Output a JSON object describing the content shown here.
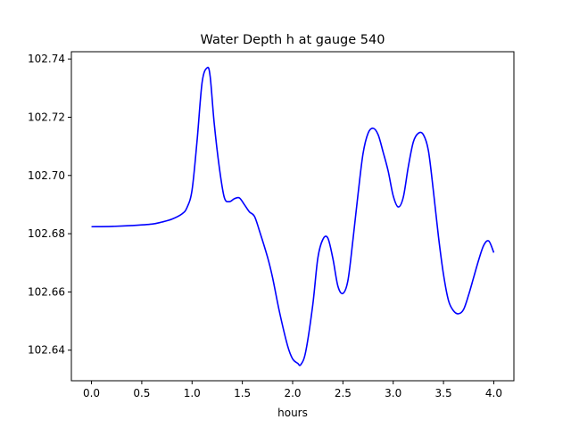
{
  "chart_data": {
    "type": "line",
    "title": "Water Depth h at gauge 540",
    "xlabel": "hours",
    "ylabel": "",
    "xlim": [
      -0.2,
      4.2
    ],
    "ylim": [
      102.6295,
      102.7425
    ],
    "xticks": [
      0.0,
      0.5,
      1.0,
      1.5,
      2.0,
      2.5,
      3.0,
      3.5,
      4.0
    ],
    "xtick_labels": [
      "0.0",
      "0.5",
      "1.0",
      "1.5",
      "2.0",
      "2.5",
      "3.0",
      "3.5",
      "4.0"
    ],
    "yticks": [
      102.64,
      102.66,
      102.68,
      102.7,
      102.72,
      102.74
    ],
    "ytick_labels": [
      "102.64",
      "102.66",
      "102.68",
      "102.70",
      "102.72",
      "102.74"
    ],
    "grid": false,
    "legend": "none",
    "series": [
      {
        "color": "#0000ff",
        "x": [
          0.0,
          0.2,
          0.4,
          0.6,
          0.7,
          0.8,
          0.9,
          0.95,
          1.0,
          1.05,
          1.1,
          1.15,
          1.18,
          1.22,
          1.27,
          1.32,
          1.37,
          1.42,
          1.47,
          1.52,
          1.57,
          1.62,
          1.67,
          1.75,
          1.8,
          1.87,
          1.95,
          2.0,
          2.05,
          2.08,
          2.13,
          2.2,
          2.25,
          2.3,
          2.35,
          2.4,
          2.45,
          2.5,
          2.55,
          2.6,
          2.65,
          2.7,
          2.75,
          2.8,
          2.85,
          2.9,
          2.95,
          3.0,
          3.05,
          3.1,
          3.15,
          3.2,
          3.25,
          3.3,
          3.35,
          3.4,
          3.45,
          3.5,
          3.55,
          3.6,
          3.65,
          3.7,
          3.75,
          3.8,
          3.85,
          3.9,
          3.95,
          4.0
        ],
        "y": [
          102.6824,
          102.6825,
          102.6828,
          102.6833,
          102.684,
          102.685,
          102.6868,
          102.689,
          102.695,
          102.712,
          102.732,
          102.737,
          102.734,
          102.718,
          102.703,
          102.6925,
          102.691,
          102.692,
          102.6923,
          102.69,
          102.6875,
          102.686,
          102.681,
          102.672,
          102.665,
          102.653,
          102.6415,
          102.637,
          102.6355,
          102.635,
          102.6395,
          102.6555,
          102.6715,
          102.678,
          102.6785,
          102.6715,
          102.662,
          102.6595,
          102.664,
          102.678,
          102.6935,
          102.7075,
          102.7145,
          102.7162,
          102.714,
          102.708,
          102.7015,
          102.693,
          102.6892,
          102.6925,
          102.703,
          102.7115,
          102.7145,
          102.714,
          102.7085,
          102.6945,
          102.679,
          102.666,
          102.657,
          102.6535,
          102.6525,
          102.654,
          102.659,
          102.665,
          102.671,
          102.676,
          102.6775,
          102.6735
        ]
      }
    ]
  }
}
